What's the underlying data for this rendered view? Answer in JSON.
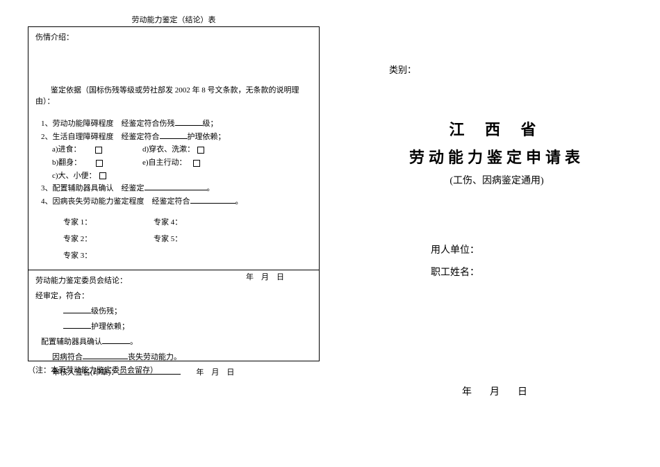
{
  "left": {
    "tableTitle": "劳动能力鉴定（结论）表",
    "introLabel": "伤情介绍：",
    "basisText": "鉴定依据（国标伤残等级或劳社部发 2002 年 8 号文条款，无条款的说明理由）：",
    "item1_pre": "1、劳动功能障碍程度　经鉴定符合伤残",
    "item1_suf": "级；",
    "item2_pre": "2、生活自理障碍程度　经鉴定符合",
    "item2_suf": "护理依赖；",
    "sub_a": "a)进食：",
    "sub_b": "b)翻身：",
    "sub_c": "c)大、小便：",
    "sub_d": "d)穿衣、洗漱：",
    "sub_e": "e)自主行动：",
    "item3_pre": "3、配置辅助器具确认　经鉴定",
    "item3_suf": "。",
    "item4_pre": "4、因病丧失劳动能力鉴定程度　经鉴定符合",
    "item4_suf": "。",
    "expert1": "专家 1：",
    "expert2": "专家 2：",
    "expert3": "专家 3：",
    "expert4": "专家 4：",
    "expert5": "专家 5：",
    "dateYMD": "年　月　日",
    "conclusionLabel": "劳动能力鉴定委员会结论：",
    "reviewText": "经审定，符合：",
    "levelSuffix": "级伤残；",
    "careSuffix": "护理依赖；",
    "assistPre": "配置辅助器具确认",
    "assistSuf": "。",
    "illnessPre": "因病符合",
    "illnessSuf": "丧失劳动能力。",
    "reviewerPre": "审核人签名(印章)：",
    "note": "（注：本页劳动能力鉴定委员会留存）"
  },
  "right": {
    "category": "类别：",
    "title1": "江 西 省",
    "title2": "劳动能力鉴定申请表",
    "subtitle": "(工伤、因病鉴定通用)",
    "employer": "用人单位：",
    "employee": "职工姓名：",
    "dateYMD": "年　月　日"
  }
}
